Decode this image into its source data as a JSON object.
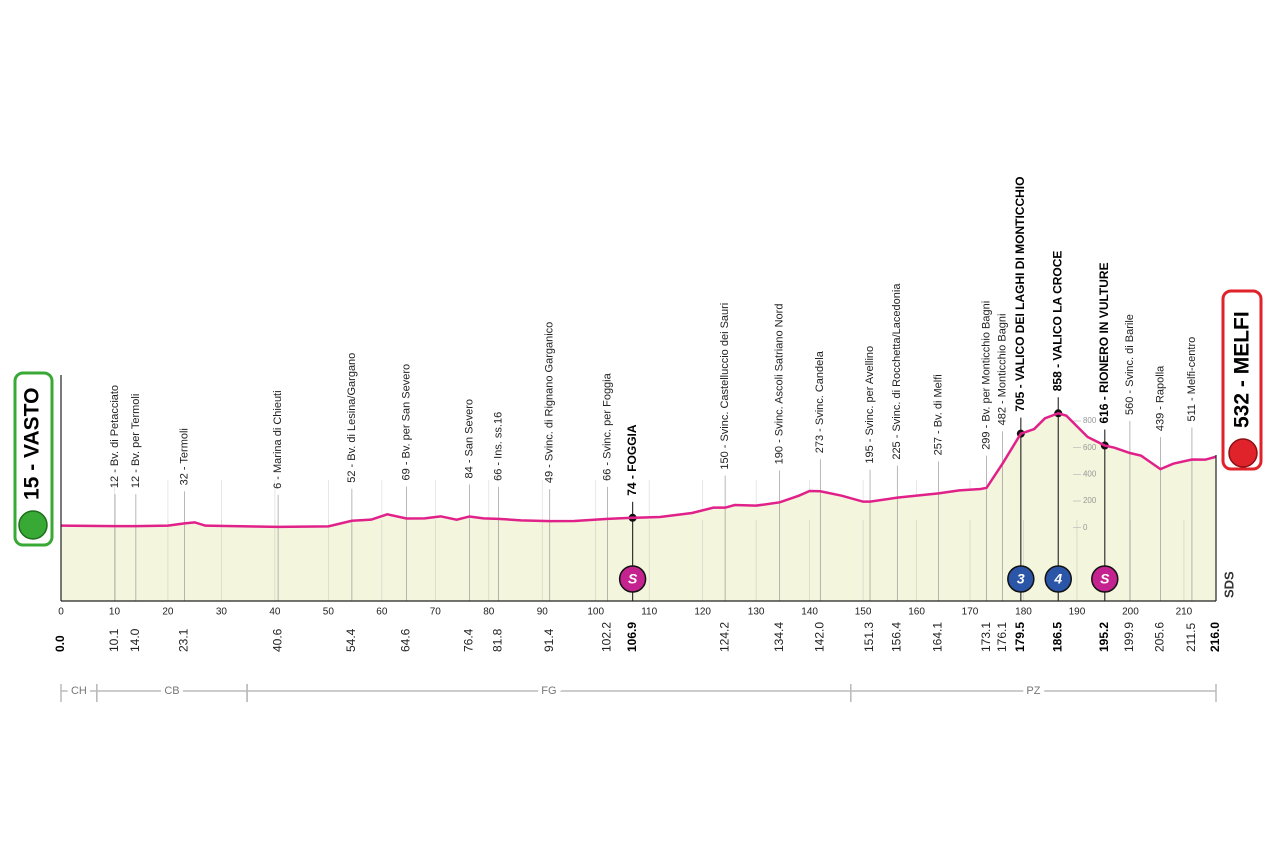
{
  "chart_data": {
    "type": "area",
    "color": "#e0218a",
    "fill": "#f3f5dc",
    "xlim": [
      0,
      216
    ],
    "ylim": [
      -550,
      1100
    ],
    "xticks": [
      0,
      10,
      20,
      30,
      40,
      50,
      60,
      70,
      80,
      90,
      100,
      110,
      120,
      130,
      140,
      150,
      160,
      170,
      180,
      190,
      200,
      210
    ],
    "yticks": [
      0,
      200,
      400,
      600,
      800
    ],
    "x": [
      0,
      10,
      14,
      20,
      23.1,
      25,
      27,
      40.6,
      50,
      54.4,
      58,
      61,
      64.6,
      68,
      71,
      74,
      76.4,
      79,
      81.8,
      86,
      91.4,
      96,
      102.2,
      106.9,
      112,
      118,
      122,
      124.2,
      126,
      130,
      134.4,
      138,
      140,
      142,
      146,
      150,
      151.3,
      156.4,
      160,
      164.1,
      168,
      172,
      173.1,
      176.1,
      179.5,
      182,
      184,
      186.5,
      188,
      192,
      195.2,
      197,
      199.9,
      202,
      205.6,
      208,
      211.5,
      214,
      216
    ],
    "values": [
      15,
      12,
      12,
      15,
      32,
      40,
      15,
      6,
      10,
      52,
      60,
      100,
      69,
      70,
      85,
      60,
      84,
      70,
      66,
      55,
      49,
      50,
      66,
      74,
      80,
      110,
      150,
      150,
      170,
      165,
      190,
      240,
      275,
      273,
      240,
      195,
      195,
      225,
      240,
      257,
      280,
      290,
      299,
      482,
      705,
      740,
      820,
      858,
      840,
      680,
      616,
      600,
      560,
      540,
      439,
      480,
      511,
      510,
      532
    ],
    "start": {
      "label": "15 - VASTO",
      "km": {
        "value": 0,
        "label": "0.0"
      }
    },
    "finish": {
      "label": "532 - MELFI",
      "km": {
        "value": 216,
        "label": "216.0"
      }
    },
    "waypoints": [
      {
        "km": 10.1,
        "alt": 12,
        "label": "12 - Bv. di Petacciato"
      },
      {
        "km": {
          "value": 14,
          "label": "14.0"
        },
        "alt": 12,
        "label": "12 - Bv. per Termoli"
      },
      {
        "km": 23.1,
        "alt": 32,
        "label": "32 - Termoli"
      },
      {
        "km": 40.6,
        "alt": 6,
        "label": "6 - Marina di Chieuti"
      },
      {
        "km": 54.4,
        "alt": 52,
        "label": "52 - Bv. di Lesina/Gargano"
      },
      {
        "km": 64.6,
        "alt": 69,
        "label": "69 - Bv. per San Severo"
      },
      {
        "km": 76.4,
        "alt": 84,
        "label": "84 - San Severo"
      },
      {
        "km": 81.8,
        "alt": 66,
        "label": "66 - Ins. ss.16"
      },
      {
        "km": 91.4,
        "alt": 49,
        "label": "49 - Svinc. di Rignano Garganico"
      },
      {
        "km": 102.2,
        "alt": 66,
        "label": "66 - Svinc. per Foggia"
      },
      {
        "km": 106.9,
        "alt": 74,
        "label": "74 - FOGGIA",
        "major": true,
        "badge": "S"
      },
      {
        "km": 124.2,
        "alt": 150,
        "label": "150 - Svinc. Castelluccio dei Sauri"
      },
      {
        "km": 134.4,
        "alt": 190,
        "label": "190 - Svinc. Ascoli Satriano Nord"
      },
      {
        "km": {
          "value": 142,
          "label": "142.0"
        },
        "alt": 273,
        "label": "273 - Svinc. Candela"
      },
      {
        "km": 151.3,
        "alt": 195,
        "label": "195 - Svinc. per Avellino"
      },
      {
        "km": 156.4,
        "alt": 225,
        "label": "225 - Svinc. di Rocchetta/Lacedonia"
      },
      {
        "km": 164.1,
        "alt": 257,
        "label": "257 - Bv. di Melfi"
      },
      {
        "km": 173.1,
        "alt": 299,
        "label": "299 - Bv. per Monticchio Bagni"
      },
      {
        "km": 176.1,
        "alt": 482,
        "label": "482 - Monticchio Bagni"
      },
      {
        "km": 179.5,
        "alt": 705,
        "label": "705 - VALICO DEI LAGHI DI MONTICCHIO",
        "major": true,
        "badge": "3"
      },
      {
        "km": 186.5,
        "alt": 858,
        "label": "858 - VALICO LA CROCE",
        "major": true,
        "badge": "4"
      },
      {
        "km": 195.2,
        "alt": 616,
        "label": "616 - RIONERO IN VULTURE",
        "major": true,
        "badge": "S"
      },
      {
        "km": 199.9,
        "alt": 560,
        "label": "560 - Svinc. di Barile"
      },
      {
        "km": 205.6,
        "alt": 439,
        "label": "439 - Rapolla"
      },
      {
        "km": 211.5,
        "alt": 511,
        "label": "511 - Melfi-centro"
      }
    ],
    "regions": [
      {
        "label": "CH",
        "from": 0,
        "to": 6.7
      },
      {
        "label": "CB",
        "from": 6.7,
        "to": 34.8
      },
      {
        "label": "FG",
        "from": 34.8,
        "to": 147.7
      },
      {
        "label": "PZ",
        "from": 147.7,
        "to": 216
      }
    ],
    "logo": "SDS"
  }
}
